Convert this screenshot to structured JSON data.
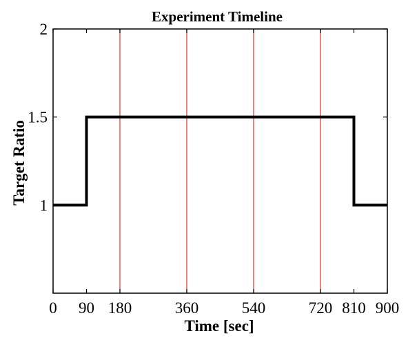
{
  "chart_data": {
    "type": "line",
    "title": "Experiment Timeline",
    "xlabel": "Time [sec]",
    "ylabel": "Target Ratio",
    "xlim": [
      0,
      900
    ],
    "ylim": [
      0.5,
      2
    ],
    "xticks": [
      0,
      90,
      180,
      360,
      540,
      720,
      810,
      900
    ],
    "xtick_labels": [
      "0",
      "90",
      "180",
      "360",
      "540",
      "720",
      "810",
      "900"
    ],
    "yticks": [
      1,
      1.5,
      2
    ],
    "ytick_labels": [
      "1",
      "1.5",
      "2"
    ],
    "grid": false,
    "series": [
      {
        "type": "step",
        "color": "#000000",
        "x": [
          0,
          90,
          90,
          810,
          810,
          900
        ],
        "y": [
          1,
          1,
          1.5,
          1.5,
          1,
          1
        ]
      }
    ],
    "vertical_lines": {
      "color": "#e8403a",
      "x": [
        180,
        360,
        540,
        720
      ]
    }
  }
}
